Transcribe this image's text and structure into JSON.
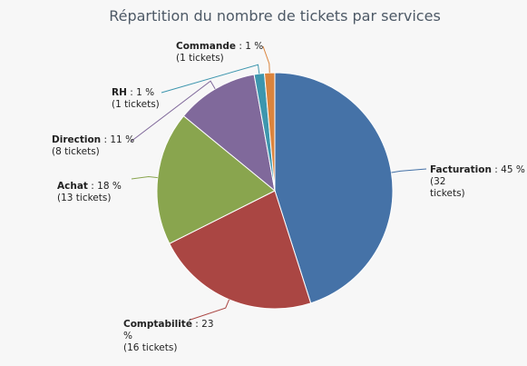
{
  "chart_data": {
    "type": "pie",
    "title": "Répartition du nombre de tickets par services",
    "unit_label": "tickets",
    "colors": {
      "Facturation": "#4572a7",
      "Comptabilité": "#aa4643",
      "Achat": "#89a54e",
      "Direction": "#80699b",
      "RH": "#3d96ae",
      "Commande": "#db843d"
    },
    "slices": [
      {
        "name": "Facturation",
        "tickets": 32,
        "percent": 45,
        "label": [
          "Facturation : 45 %",
          "(32",
          "tickets)"
        ]
      },
      {
        "name": "Comptabilité",
        "tickets": 16,
        "percent": 23,
        "label": [
          "Comptabilité : 23",
          "%",
          "(16 tickets)"
        ]
      },
      {
        "name": "Achat",
        "tickets": 13,
        "percent": 18,
        "label": [
          "Achat : 18 %",
          "(13 tickets)"
        ]
      },
      {
        "name": "Direction",
        "tickets": 8,
        "percent": 11,
        "label": [
          "Direction : 11 %",
          "(8 tickets)"
        ]
      },
      {
        "name": "RH",
        "tickets": 1,
        "percent": 1,
        "label": [
          "RH : 1 %",
          "(1 tickets)"
        ]
      },
      {
        "name": "Commande",
        "tickets": 1,
        "percent": 1,
        "label": [
          "Commande : 1 %",
          "(1 tickets)"
        ]
      }
    ],
    "legend": "none"
  }
}
